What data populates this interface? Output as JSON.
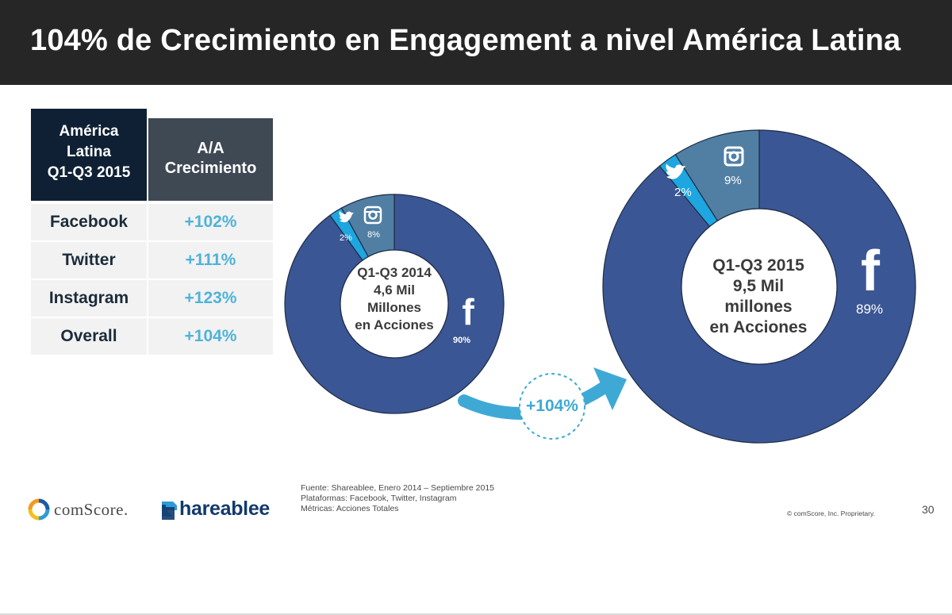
{
  "title": "104% de Crecimiento en Engagement a nivel América Latina",
  "table": {
    "header_region_lines": [
      "América",
      "Latina",
      "Q1-Q3  2015"
    ],
    "header_growth_lines": [
      "A/A",
      "Crecimiento"
    ],
    "rows": [
      {
        "platform": "Facebook",
        "growth": "+102%"
      },
      {
        "platform": "Twitter",
        "growth": "+111%"
      },
      {
        "platform": "Instagram",
        "growth": "+123%"
      },
      {
        "platform": "Overall",
        "growth": "+104%"
      }
    ]
  },
  "chart_data": [
    {
      "type": "pie",
      "title": "",
      "center_lines": [
        "Q1-Q3  2014",
        "4,6 Mil",
        "Millones",
        "en Acciones"
      ],
      "categories": [
        "Facebook",
        "Twitter",
        "Instagram"
      ],
      "values": [
        90,
        2,
        8
      ],
      "value_labels": [
        "90%",
        "2%",
        "8%"
      ],
      "icons": [
        "facebook-icon",
        "twitter-icon",
        "instagram-icon"
      ]
    },
    {
      "type": "pie",
      "title": "",
      "center_lines": [
        "Q1-Q3  2015",
        "9,5 Mil",
        "millones",
        "en Acciones"
      ],
      "categories": [
        "Facebook",
        "Twitter",
        "Instagram"
      ],
      "values": [
        89,
        2,
        9
      ],
      "value_labels": [
        "89%",
        "2%",
        "9%"
      ],
      "icons": [
        "facebook-icon",
        "twitter-icon",
        "instagram-icon"
      ]
    }
  ],
  "growth_arrow_label": "+104%",
  "colors": {
    "facebook": "#3b5694",
    "twitter": "#1da6e0",
    "instagram": "#517fa4",
    "accent": "#3fa9d6",
    "title_bar": "#262626"
  },
  "footer": {
    "comscore_logo": "comScore.",
    "shareablee_logo": "hareablee",
    "source_lines": [
      "Fuente: Shareablee, Enero 2014 – Septiembre 2015",
      "Plataformas: Facebook, Twitter, Instagram",
      "Métricas: Acciones Totales"
    ],
    "copyright": "© comScore, Inc. Proprietary.",
    "page_number": "30"
  }
}
